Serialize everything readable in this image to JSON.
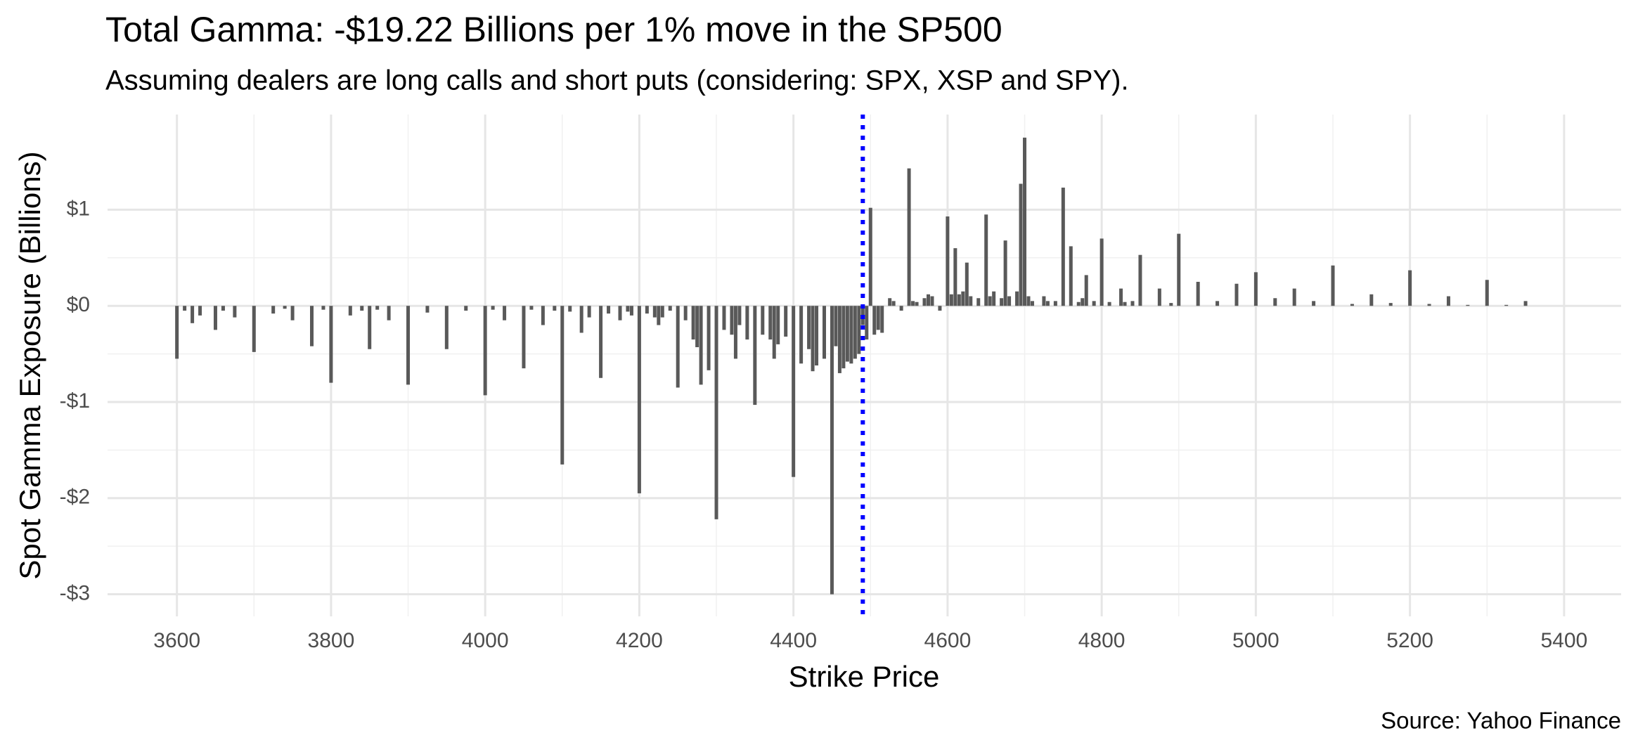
{
  "chart_data": {
    "type": "bar",
    "title": "Total Gamma: -$19.22 Billions per 1% move in the SP500",
    "subtitle": "Assuming dealers are long calls and short puts (considering: SPX, XSP and SPY).",
    "x_label": "Strike Price",
    "y_label": "Spot Gamma Exposure (Billions)",
    "caption": "Source: Yahoo Finance",
    "color": "#595959",
    "grid": true,
    "xlim": [
      3510,
      5474
    ],
    "ylim": [
      -3.23,
      1.99
    ],
    "xticks": [
      3600,
      3800,
      4000,
      4200,
      4400,
      4600,
      4800,
      5000,
      5200,
      5400
    ],
    "yticks": [
      {
        "value": -3,
        "label": "-$3"
      },
      {
        "value": -2,
        "label": "-$2"
      },
      {
        "value": -1,
        "label": "-$1"
      },
      {
        "value": 0,
        "label": "$0"
      },
      {
        "value": 1,
        "label": "$1"
      }
    ],
    "vline": {
      "x": 4490,
      "color": "#0000ff"
    },
    "x": [
      3600,
      3610,
      3620,
      3630,
      3650,
      3660,
      3675,
      3700,
      3725,
      3740,
      3750,
      3775,
      3790,
      3800,
      3825,
      3840,
      3850,
      3860,
      3875,
      3900,
      3925,
      3950,
      3975,
      4000,
      4010,
      4025,
      4050,
      4060,
      4075,
      4090,
      4100,
      4110,
      4125,
      4135,
      4150,
      4160,
      4175,
      4185,
      4190,
      4200,
      4210,
      4220,
      4225,
      4230,
      4240,
      4250,
      4260,
      4270,
      4275,
      4280,
      4290,
      4300,
      4310,
      4320,
      4325,
      4330,
      4340,
      4350,
      4360,
      4370,
      4375,
      4380,
      4390,
      4400,
      4410,
      4420,
      4425,
      4430,
      4440,
      4450,
      4455,
      4460,
      4465,
      4470,
      4475,
      4480,
      4485,
      4490,
      4495,
      4500,
      4505,
      4510,
      4515,
      4525,
      4530,
      4540,
      4550,
      4555,
      4560,
      4570,
      4575,
      4580,
      4590,
      4600,
      4605,
      4610,
      4615,
      4620,
      4625,
      4630,
      4640,
      4650,
      4655,
      4660,
      4670,
      4675,
      4680,
      4690,
      4695,
      4700,
      4705,
      4710,
      4725,
      4730,
      4740,
      4750,
      4760,
      4770,
      4775,
      4780,
      4790,
      4800,
      4810,
      4825,
      4830,
      4840,
      4850,
      4875,
      4890,
      4900,
      4925,
      4950,
      4975,
      5000,
      5025,
      5050,
      5075,
      5100,
      5125,
      5150,
      5175,
      5200,
      5225,
      5250,
      5275,
      5300,
      5325,
      5350
    ],
    "values": [
      -0.55,
      -0.05,
      -0.18,
      -0.1,
      -0.25,
      -0.05,
      -0.12,
      -0.48,
      -0.08,
      -0.03,
      -0.15,
      -0.42,
      -0.04,
      -0.8,
      -0.1,
      -0.05,
      -0.45,
      -0.04,
      -0.15,
      -0.82,
      -0.07,
      -0.45,
      -0.05,
      -0.93,
      -0.04,
      -0.15,
      -0.65,
      -0.04,
      -0.2,
      -0.05,
      -1.65,
      -0.06,
      -0.28,
      -0.12,
      -0.75,
      -0.08,
      -0.15,
      -0.06,
      -0.1,
      -1.95,
      -0.08,
      -0.12,
      -0.2,
      -0.12,
      -0.05,
      -0.85,
      -0.15,
      -0.35,
      -0.43,
      -0.82,
      -0.67,
      -2.22,
      -0.25,
      -0.3,
      -0.55,
      -0.2,
      -0.35,
      -1.03,
      -0.3,
      -0.35,
      -0.55,
      -0.4,
      -0.32,
      -1.78,
      -0.6,
      -0.45,
      -0.68,
      -0.62,
      -0.55,
      -3.0,
      -0.42,
      -0.7,
      -0.65,
      -0.58,
      -0.6,
      -0.55,
      -0.5,
      -0.2,
      -0.35,
      1.02,
      -0.3,
      -0.25,
      -0.28,
      0.08,
      0.05,
      -0.05,
      1.43,
      0.05,
      0.04,
      0.08,
      0.12,
      0.1,
      -0.05,
      0.93,
      0.12,
      0.6,
      0.12,
      0.15,
      0.45,
      0.1,
      0.08,
      0.95,
      0.1,
      0.15,
      0.08,
      0.68,
      0.1,
      0.15,
      1.27,
      1.75,
      0.1,
      0.05,
      0.1,
      0.05,
      0.05,
      1.23,
      0.62,
      0.04,
      0.08,
      0.32,
      0.05,
      0.7,
      0.04,
      0.18,
      0.04,
      0.05,
      0.53,
      0.18,
      0.03,
      0.75,
      0.25,
      0.05,
      0.23,
      0.35,
      0.08,
      0.18,
      0.05,
      0.42,
      0.02,
      0.12,
      0.03,
      0.37,
      0.02,
      0.1,
      0.01,
      0.27,
      0.01,
      0.05
    ]
  }
}
